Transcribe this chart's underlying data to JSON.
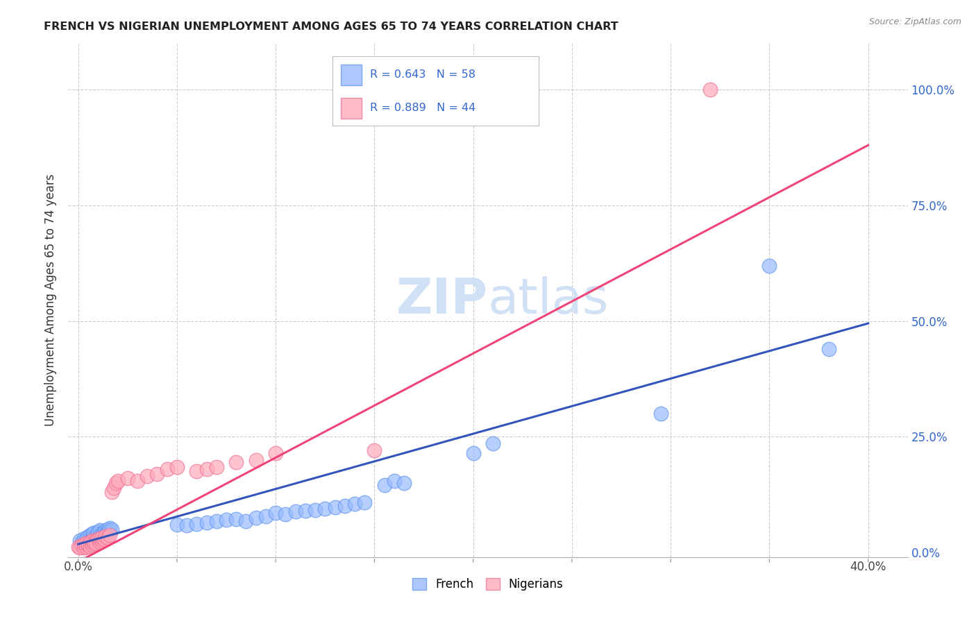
{
  "title": "FRENCH VS NIGERIAN UNEMPLOYMENT AMONG AGES 65 TO 74 YEARS CORRELATION CHART",
  "source": "Source: ZipAtlas.com",
  "xlabel_ticks_vals": [
    0.0,
    0.05,
    0.1,
    0.15,
    0.2,
    0.25,
    0.3,
    0.35,
    0.4
  ],
  "xlabel_ticks_labels": [
    "0.0%",
    "",
    "",
    "",
    "",
    "",
    "",
    "",
    "40.0%"
  ],
  "ylabel_ticks": [
    "0.0%",
    "25.0%",
    "50.0%",
    "75.0%",
    "100.0%"
  ],
  "ylabel_label": "Unemployment Among Ages 65 to 74 years",
  "xlim": [
    -0.005,
    0.42
  ],
  "ylim": [
    -0.01,
    1.1
  ],
  "french_legend": "French",
  "nigerian_legend": "Nigerians",
  "french_r_label": "R = 0.643",
  "french_n_label": "N = 58",
  "nigerian_r_label": "R = 0.889",
  "nigerian_n_label": "N = 44",
  "french_color": "#99bbff",
  "french_edge_color": "#6699ee",
  "nigerian_color": "#ffaabb",
  "nigerian_edge_color": "#ee7799",
  "french_line_color": "#3355bb",
  "nigerian_line_color": "#ee4477",
  "r_n_color": "#3366cc",
  "watermark_color": "#d0e0f5",
  "background_color": "#ffffff",
  "french_x": [
    0.001,
    0.002,
    0.003,
    0.004,
    0.005,
    0.005,
    0.006,
    0.006,
    0.007,
    0.007,
    0.008,
    0.008,
    0.009,
    0.009,
    0.01,
    0.01,
    0.011,
    0.011,
    0.012,
    0.012,
    0.013,
    0.013,
    0.014,
    0.014,
    0.015,
    0.015,
    0.015,
    0.016,
    0.016,
    0.017,
    0.05,
    0.055,
    0.06,
    0.065,
    0.07,
    0.075,
    0.08,
    0.085,
    0.09,
    0.095,
    0.1,
    0.105,
    0.11,
    0.115,
    0.12,
    0.125,
    0.13,
    0.135,
    0.14,
    0.145,
    0.155,
    0.16,
    0.165,
    0.2,
    0.21,
    0.295,
    0.35,
    0.38
  ],
  "french_y": [
    0.025,
    0.022,
    0.03,
    0.028,
    0.035,
    0.02,
    0.038,
    0.025,
    0.04,
    0.03,
    0.035,
    0.042,
    0.038,
    0.032,
    0.042,
    0.045,
    0.038,
    0.048,
    0.042,
    0.036,
    0.045,
    0.04,
    0.048,
    0.038,
    0.05,
    0.045,
    0.042,
    0.048,
    0.052,
    0.05,
    0.06,
    0.058,
    0.062,
    0.065,
    0.068,
    0.07,
    0.072,
    0.068,
    0.075,
    0.078,
    0.085,
    0.082,
    0.088,
    0.09,
    0.092,
    0.095,
    0.098,
    0.1,
    0.105,
    0.108,
    0.145,
    0.155,
    0.15,
    0.215,
    0.235,
    0.3,
    0.62,
    0.44
  ],
  "nigerian_x": [
    0.0,
    0.001,
    0.002,
    0.003,
    0.003,
    0.004,
    0.004,
    0.005,
    0.005,
    0.006,
    0.006,
    0.007,
    0.007,
    0.008,
    0.008,
    0.009,
    0.009,
    0.01,
    0.011,
    0.011,
    0.012,
    0.012,
    0.013,
    0.014,
    0.015,
    0.016,
    0.017,
    0.018,
    0.019,
    0.02,
    0.025,
    0.03,
    0.035,
    0.04,
    0.045,
    0.05,
    0.06,
    0.065,
    0.07,
    0.08,
    0.09,
    0.1,
    0.15,
    0.32
  ],
  "nigerian_y": [
    0.012,
    0.01,
    0.015,
    0.01,
    0.018,
    0.012,
    0.02,
    0.015,
    0.018,
    0.012,
    0.022,
    0.015,
    0.025,
    0.018,
    0.022,
    0.025,
    0.02,
    0.028,
    0.022,
    0.03,
    0.025,
    0.032,
    0.028,
    0.035,
    0.032,
    0.038,
    0.13,
    0.14,
    0.15,
    0.155,
    0.16,
    0.155,
    0.165,
    0.17,
    0.18,
    0.185,
    0.175,
    0.18,
    0.185,
    0.195,
    0.2,
    0.215,
    0.22,
    1.0
  ],
  "french_line_x": [
    0.0,
    0.4
  ],
  "french_line_y": [
    0.018,
    0.495
  ],
  "nigerian_line_x": [
    0.0,
    0.4
  ],
  "nigerian_line_y": [
    -0.02,
    0.88
  ]
}
